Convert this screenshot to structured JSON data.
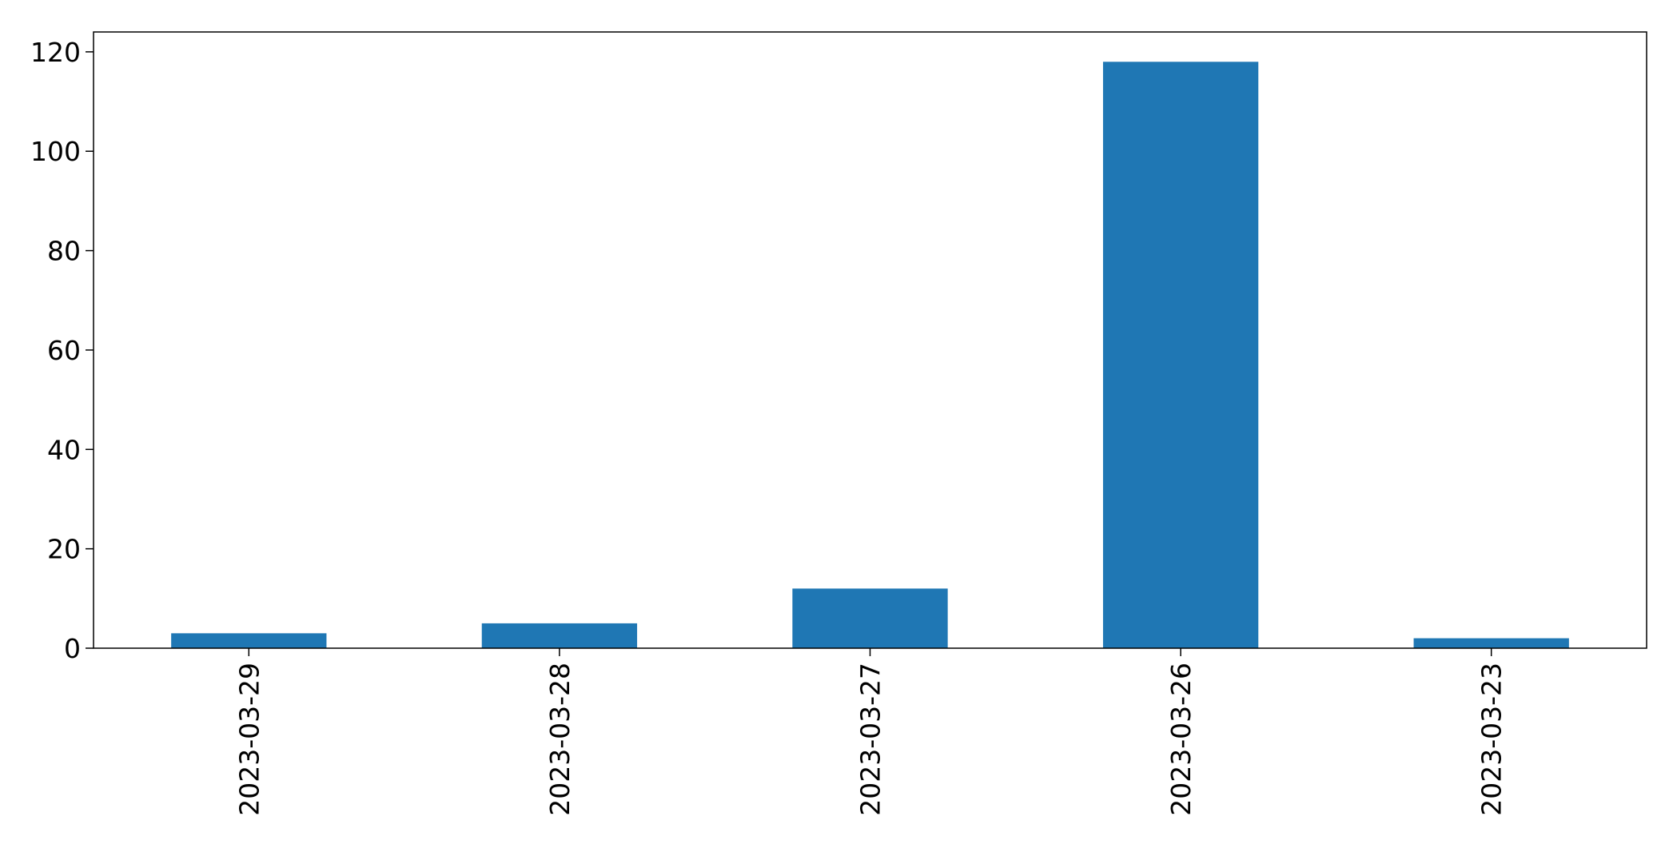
{
  "chart_data": {
    "type": "bar",
    "categories": [
      "2023-03-29",
      "2023-03-28",
      "2023-03-27",
      "2023-03-26",
      "2023-03-23"
    ],
    "values": [
      3,
      5,
      12,
      118,
      2
    ],
    "title": "",
    "xlabel": "",
    "ylabel": "",
    "ylim": [
      0,
      124
    ],
    "yticks": [
      "0",
      "20",
      "40",
      "60",
      "80",
      "100",
      "120"
    ],
    "grid": false,
    "legend": "none",
    "bar_color": "#1f77b4"
  }
}
